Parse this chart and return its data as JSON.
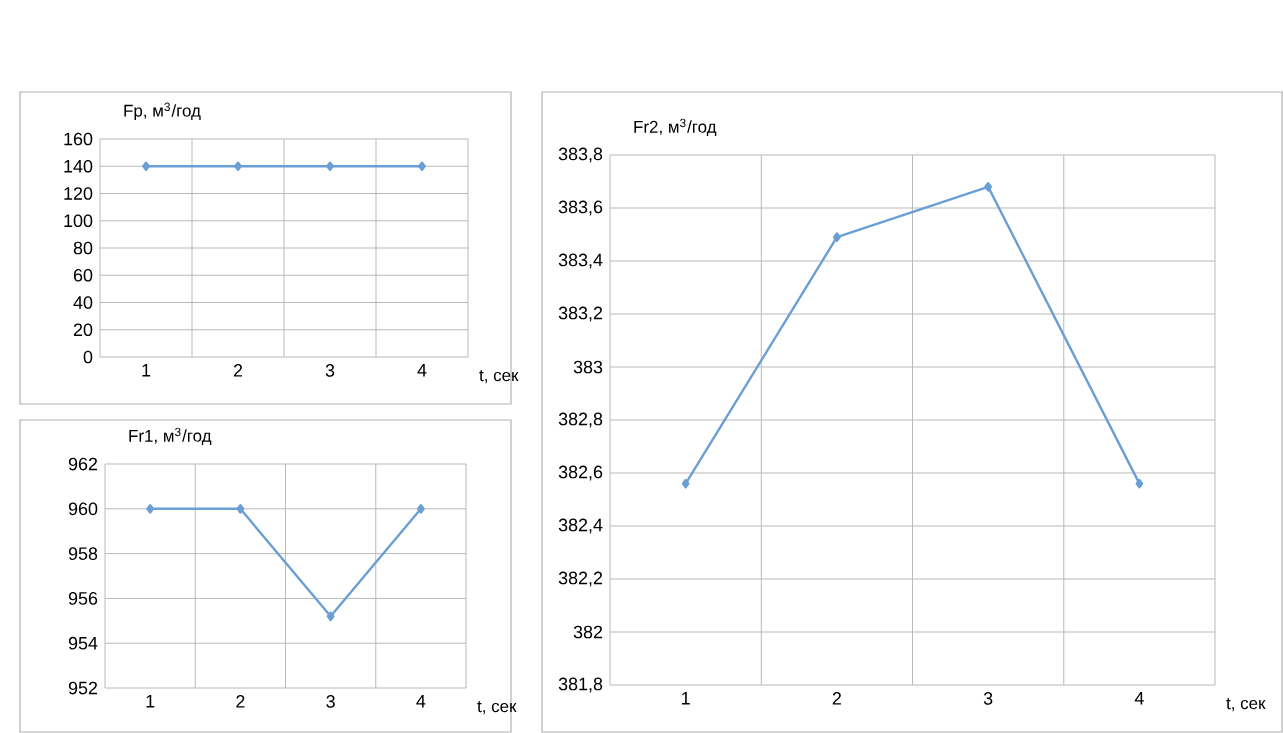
{
  "chart_data": [
    {
      "type": "line",
      "title": "Fр, м$^{3}$/год",
      "xlabel": "t, сек",
      "categories": [
        "1",
        "2",
        "3",
        "4"
      ],
      "values": [
        140,
        140,
        140,
        140
      ],
      "color": "#6a9fd4",
      "ylim": [
        0,
        160
      ],
      "yticks": [
        0,
        20,
        40,
        60,
        80,
        100,
        120,
        140,
        160
      ],
      "grid": true,
      "marker": "diamond"
    },
    {
      "type": "line",
      "title": "Fr1, м$^{3}$/год",
      "xlabel": "t, сек",
      "categories": [
        "1",
        "2",
        "3",
        "4"
      ],
      "values": [
        960,
        960,
        955.2,
        960
      ],
      "color": "#6a9fd4",
      "ylim": [
        952,
        962
      ],
      "yticks": [
        952,
        954,
        956,
        958,
        960,
        962
      ],
      "grid": true,
      "marker": "diamond"
    },
    {
      "type": "line",
      "title": "Fr2, м$^{3}$/год",
      "xlabel": "t, сек",
      "categories": [
        "1",
        "2",
        "3",
        "4"
      ],
      "values": [
        382.56,
        383.49,
        383.68,
        382.56
      ],
      "color": "#6a9fd4",
      "ylim": [
        381.8,
        383.8
      ],
      "yticks": [
        {
          "value": 381.8,
          "label": "381,8"
        },
        {
          "value": 382,
          "label": "382"
        },
        {
          "value": 382.2,
          "label": "382,2"
        },
        {
          "value": 382.4,
          "label": "382,4"
        },
        {
          "value": 382.6,
          "label": "382,6"
        },
        {
          "value": 382.8,
          "label": "382,8"
        },
        {
          "value": 383,
          "label": "383"
        },
        {
          "value": 383.2,
          "label": "383,2"
        },
        {
          "value": 383.4,
          "label": "383,4"
        },
        {
          "value": 383.6,
          "label": "383,6"
        },
        {
          "value": 383.8,
          "label": "383,8"
        }
      ],
      "grid": true,
      "marker": "diamond"
    }
  ]
}
